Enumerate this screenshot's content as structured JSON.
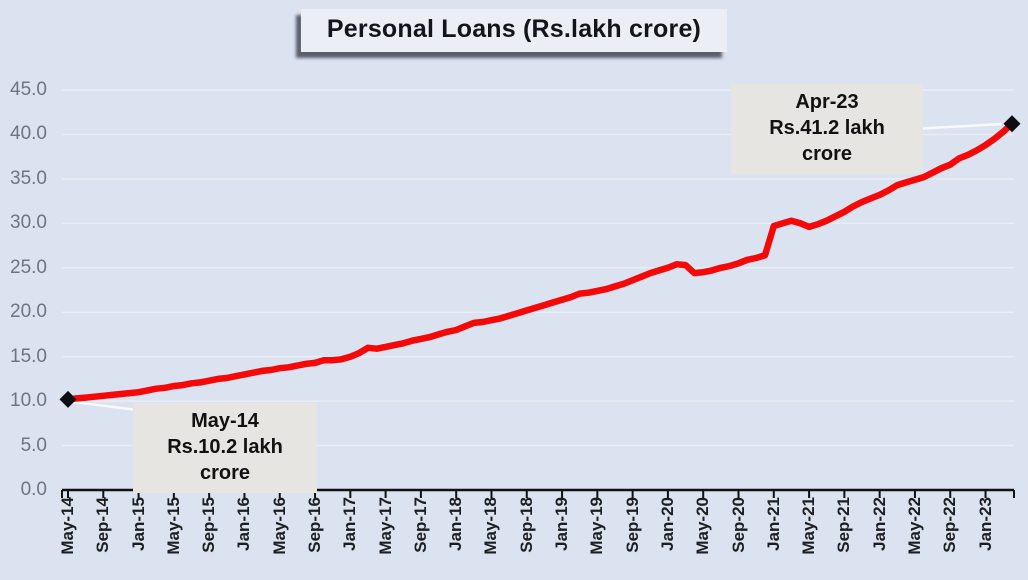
{
  "title": "Personal Loans (Rs.lakh crore)",
  "annotations": {
    "start": {
      "label": "May-14",
      "value": "Rs.10.2 lakh crore"
    },
    "end": {
      "label": "Apr-23",
      "value": "Rs.41.2 lakh crore"
    }
  },
  "colors": {
    "background": "#dbe2f0",
    "line": "#f50808",
    "marker": "#0d0d12",
    "gridline": "#e9edf5",
    "axis": "#111111",
    "y_label": "#6e7483",
    "x_label": "#1c1e21",
    "title_box_bg": "#ebeef5",
    "annotation_bg": "#e7e5e1",
    "leader_line": "#f8f9fc"
  },
  "chart_data": {
    "type": "line",
    "title": "Personal Loans (Rs.lakh crore)",
    "ylim": [
      0,
      45
    ],
    "grid": "horizontal",
    "legend": "none",
    "y_tick_labels": [
      "0.0",
      "5.0",
      "10.0",
      "15.0",
      "20.0",
      "25.0",
      "30.0",
      "35.0",
      "40.0",
      "45.0"
    ],
    "x_tick_labels": [
      "May-14",
      "Sep-14",
      "Jan-15",
      "May-15",
      "Sep-15",
      "Jan-16",
      "May-16",
      "Sep-16",
      "Jan-17",
      "May-17",
      "Sep-17",
      "Jan-18",
      "May-18",
      "Sep-18",
      "Jan-19",
      "May-19",
      "Sep-19",
      "Jan-20",
      "May-20",
      "Sep-20",
      "Jan-21",
      "May-21",
      "Sep-21",
      "Jan-22",
      "May-22",
      "Sep-22",
      "Jan-23"
    ],
    "x_tick_every_n_months": 4,
    "x": [
      "May-14",
      "Jun-14",
      "Jul-14",
      "Aug-14",
      "Sep-14",
      "Oct-14",
      "Nov-14",
      "Dec-14",
      "Jan-15",
      "Feb-15",
      "Mar-15",
      "Apr-15",
      "May-15",
      "Jun-15",
      "Jul-15",
      "Aug-15",
      "Sep-15",
      "Oct-15",
      "Nov-15",
      "Dec-15",
      "Jan-16",
      "Feb-16",
      "Mar-16",
      "Apr-16",
      "May-16",
      "Jun-16",
      "Jul-16",
      "Aug-16",
      "Sep-16",
      "Oct-16",
      "Nov-16",
      "Dec-16",
      "Jan-17",
      "Feb-17",
      "Mar-17",
      "Apr-17",
      "May-17",
      "Jun-17",
      "Jul-17",
      "Aug-17",
      "Sep-17",
      "Oct-17",
      "Nov-17",
      "Dec-17",
      "Jan-18",
      "Feb-18",
      "Mar-18",
      "Apr-18",
      "May-18",
      "Jun-18",
      "Jul-18",
      "Aug-18",
      "Sep-18",
      "Oct-18",
      "Nov-18",
      "Dec-18",
      "Jan-19",
      "Feb-19",
      "Mar-19",
      "Apr-19",
      "May-19",
      "Jun-19",
      "Jul-19",
      "Aug-19",
      "Sep-19",
      "Oct-19",
      "Nov-19",
      "Dec-19",
      "Jan-20",
      "Feb-20",
      "Mar-20",
      "Apr-20",
      "May-20",
      "Jun-20",
      "Jul-20",
      "Aug-20",
      "Sep-20",
      "Oct-20",
      "Nov-20",
      "Dec-20",
      "Jan-21",
      "Feb-21",
      "Mar-21",
      "Apr-21",
      "May-21",
      "Jun-21",
      "Jul-21",
      "Aug-21",
      "Sep-21",
      "Oct-21",
      "Nov-21",
      "Dec-21",
      "Jan-22",
      "Feb-22",
      "Mar-22",
      "Apr-22",
      "May-22",
      "Jun-22",
      "Jul-22",
      "Aug-22",
      "Sep-22",
      "Oct-22",
      "Nov-22",
      "Dec-22",
      "Jan-23",
      "Feb-23",
      "Mar-23",
      "Apr-23"
    ],
    "series": [
      {
        "name": "Personal Loans (Rs.lakh crore)",
        "color": "#f50808",
        "values": [
          10.2,
          10.3,
          10.4,
          10.5,
          10.6,
          10.7,
          10.8,
          10.9,
          11.0,
          11.2,
          11.4,
          11.5,
          11.7,
          11.8,
          12.0,
          12.1,
          12.3,
          12.5,
          12.6,
          12.8,
          13.0,
          13.2,
          13.4,
          13.5,
          13.7,
          13.8,
          14.0,
          14.2,
          14.3,
          14.6,
          14.6,
          14.7,
          15.0,
          15.4,
          16.0,
          15.9,
          16.1,
          16.3,
          16.5,
          16.8,
          17.0,
          17.2,
          17.5,
          17.8,
          18.0,
          18.4,
          18.8,
          18.9,
          19.1,
          19.3,
          19.6,
          19.9,
          20.2,
          20.5,
          20.8,
          21.1,
          21.4,
          21.7,
          22.1,
          22.2,
          22.4,
          22.6,
          22.9,
          23.2,
          23.6,
          24.0,
          24.4,
          24.7,
          25.0,
          25.4,
          25.3,
          24.4,
          24.5,
          24.7,
          25.0,
          25.2,
          25.5,
          25.9,
          26.1,
          26.4,
          29.7,
          30.0,
          30.3,
          30.0,
          29.6,
          29.9,
          30.3,
          30.8,
          31.3,
          31.9,
          32.4,
          32.8,
          33.2,
          33.7,
          34.3,
          34.6,
          34.9,
          35.2,
          35.7,
          36.2,
          36.6,
          37.3,
          37.7,
          38.2,
          38.8,
          39.5,
          40.3,
          41.2
        ]
      }
    ],
    "annotations": [
      {
        "x": "May-14",
        "y": 10.2,
        "text": "May-14 Rs.10.2 lakh crore"
      },
      {
        "x": "Apr-23",
        "y": 41.2,
        "text": "Apr-23 Rs.41.2 lakh crore"
      }
    ]
  }
}
